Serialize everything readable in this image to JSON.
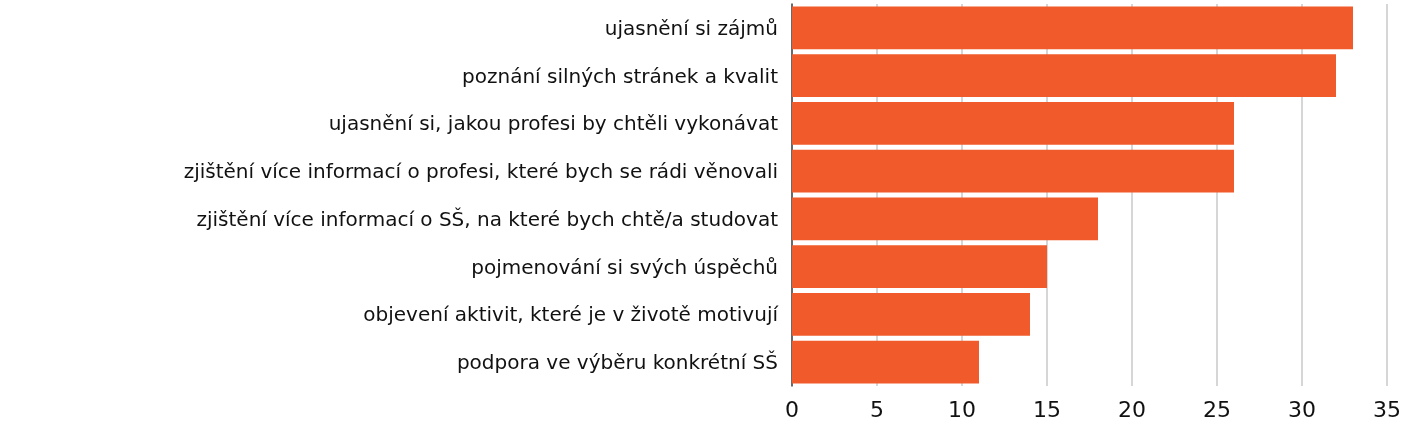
{
  "chart_data": {
    "type": "bar",
    "orientation": "horizontal",
    "categories": [
      "ujasnění si zájmů",
      "poznání silných stránek a kvalit",
      "ujasnění si, jakou profesi by chtěli vykonávat",
      "zjištění více informací o profesi, které bych se rádi věnovali",
      "zjištění více informací o SŠ, na které bych chtě/a studovat",
      "pojmenování si svých úspěchů",
      "objevení aktivit, které je v životě motivují",
      "podpora ve výběru konkrétní SŠ"
    ],
    "values": [
      33,
      32,
      26,
      26,
      18,
      15,
      14,
      11
    ],
    "color": "#f15a2b",
    "xlim": [
      0,
      35
    ],
    "xticks": [
      0,
      5,
      10,
      15,
      20,
      25,
      30,
      35
    ],
    "grid": "x"
  }
}
